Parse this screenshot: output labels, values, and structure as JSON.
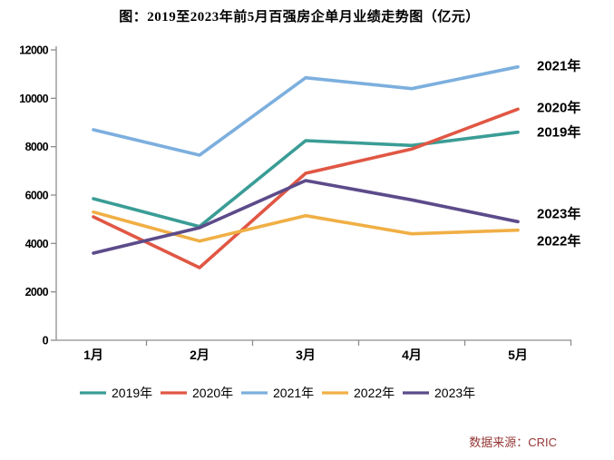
{
  "chart_data": {
    "type": "line",
    "title": "图：2019至2023年前5月百强房企单月业绩走势图（亿元）",
    "categories": [
      "1月",
      "2月",
      "3月",
      "4月",
      "5月"
    ],
    "series": [
      {
        "name": "2019年",
        "color": "#3A9D96",
        "values": [
          5850,
          4700,
          8250,
          8050,
          8600
        ]
      },
      {
        "name": "2020年",
        "color": "#E05744",
        "values": [
          5100,
          3000,
          6900,
          7900,
          9550
        ]
      },
      {
        "name": "2021年",
        "color": "#7CAFDE",
        "values": [
          8700,
          7650,
          10850,
          10400,
          11300
        ]
      },
      {
        "name": "2022年",
        "color": "#F0AF45",
        "values": [
          5300,
          4100,
          5150,
          4400,
          4550
        ]
      },
      {
        "name": "2023年",
        "color": "#5C4B8A",
        "values": [
          3600,
          4650,
          6600,
          5800,
          4900
        ]
      }
    ],
    "ylim": [
      0,
      12000
    ],
    "ytick_step": 2000,
    "yticks": [
      "0",
      "2000",
      "4000",
      "6000",
      "8000",
      "10000",
      "12000"
    ],
    "grid": false,
    "legend_position": "bottom",
    "axis_color": "#8C8C8C",
    "source_note": "数据来源：CRIC"
  }
}
